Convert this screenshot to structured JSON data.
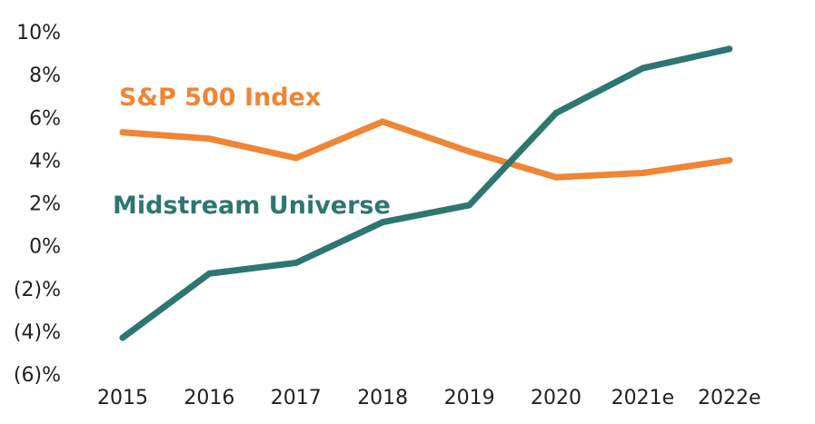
{
  "chart_data": {
    "type": "line",
    "x": [
      "2015",
      "2016",
      "2017",
      "2018",
      "2019",
      "2020",
      "2021e",
      "2022e"
    ],
    "ylim": [
      -6,
      10
    ],
    "yticks": [
      10,
      8,
      6,
      4,
      2,
      0,
      -2,
      -4,
      -6
    ],
    "ytick_labels": [
      "10%",
      "8%",
      "6%",
      "4%",
      "2%",
      "0%",
      "(2)%",
      "(4)%",
      "(6)%"
    ],
    "grid": false,
    "legend": "inline labels",
    "series": [
      {
        "name": "S&P 500 Index",
        "color": "#ef8535",
        "values": [
          5.3,
          5.0,
          4.1,
          5.8,
          4.4,
          3.2,
          3.4,
          4.0
        ]
      },
      {
        "name": "Midstream Universe",
        "color": "#2e7671",
        "values": [
          -4.3,
          -1.3,
          -0.8,
          1.1,
          1.9,
          6.2,
          8.3,
          9.2
        ]
      }
    ]
  }
}
